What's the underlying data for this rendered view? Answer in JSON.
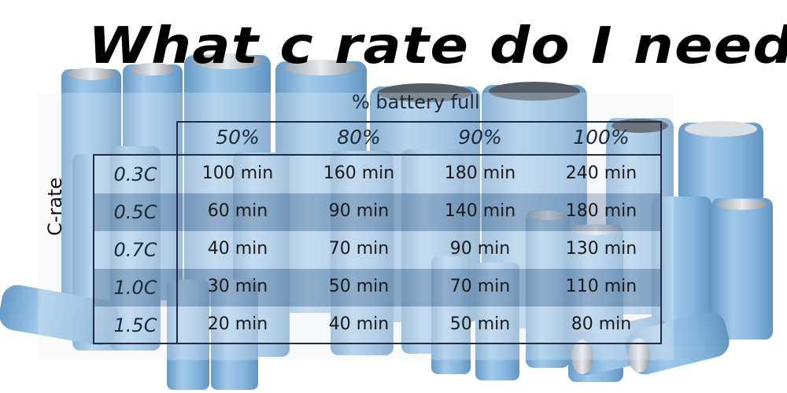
{
  "title": "What c rate do I need",
  "table": {
    "column_group_label": "% battery full",
    "row_group_label": "C-rate",
    "columns": [
      "50%",
      "80%",
      "90%",
      "100%"
    ],
    "rows": [
      {
        "rate": "0.3C",
        "cells": [
          "100 min",
          "160 min",
          "180 min",
          "240 min"
        ]
      },
      {
        "rate": "0.5C",
        "cells": [
          "60 min",
          "90 min",
          "140 min",
          "180 min"
        ]
      },
      {
        "rate": "0.7C",
        "cells": [
          "40 min",
          "70 min",
          "90 min",
          "130 min"
        ]
      },
      {
        "rate": "1.0C",
        "cells": [
          "30 min",
          "50 min",
          "70 min",
          "110 min"
        ]
      },
      {
        "rate": "1.5C",
        "cells": [
          "20 min",
          "40 min",
          "50 min",
          "80 min"
        ]
      }
    ]
  },
  "colors": {
    "battery_blue": "#7fb2dc",
    "frame": "#1e2d44",
    "band_dark": "#37557d"
  }
}
